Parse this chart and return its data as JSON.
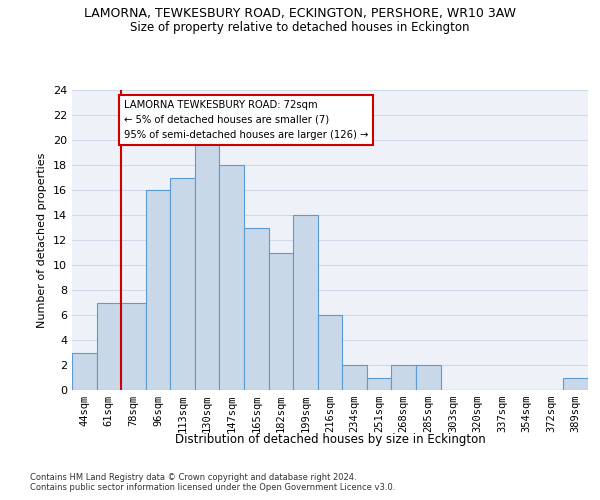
{
  "title1": "LAMORNA, TEWKESBURY ROAD, ECKINGTON, PERSHORE, WR10 3AW",
  "title2": "Size of property relative to detached houses in Eckington",
  "xlabel": "Distribution of detached houses by size in Eckington",
  "ylabel": "Number of detached properties",
  "categories": [
    "44sqm",
    "61sqm",
    "78sqm",
    "96sqm",
    "113sqm",
    "130sqm",
    "147sqm",
    "165sqm",
    "182sqm",
    "199sqm",
    "216sqm",
    "234sqm",
    "251sqm",
    "268sqm",
    "285sqm",
    "303sqm",
    "320sqm",
    "337sqm",
    "354sqm",
    "372sqm",
    "389sqm"
  ],
  "values": [
    3,
    7,
    7,
    16,
    17,
    20,
    18,
    13,
    11,
    14,
    6,
    2,
    1,
    2,
    2,
    0,
    0,
    0,
    0,
    0,
    1
  ],
  "bar_color": "#c8d8e8",
  "bar_edge_color": "#5b9bd5",
  "red_line_x": 1.5,
  "annotation_text": "LAMORNA TEWKESBURY ROAD: 72sqm\n← 5% of detached houses are smaller (7)\n95% of semi-detached houses are larger (126) →",
  "annotation_box_color": "#ffffff",
  "annotation_box_edge": "#cc0000",
  "red_line_color": "#cc0000",
  "ylim": [
    0,
    24
  ],
  "yticks": [
    0,
    2,
    4,
    6,
    8,
    10,
    12,
    14,
    16,
    18,
    20,
    22,
    24
  ],
  "footer1": "Contains HM Land Registry data © Crown copyright and database right 2024.",
  "footer2": "Contains public sector information licensed under the Open Government Licence v3.0.",
  "grid_color": "#d0d8e8",
  "background_color": "#eef2f8"
}
